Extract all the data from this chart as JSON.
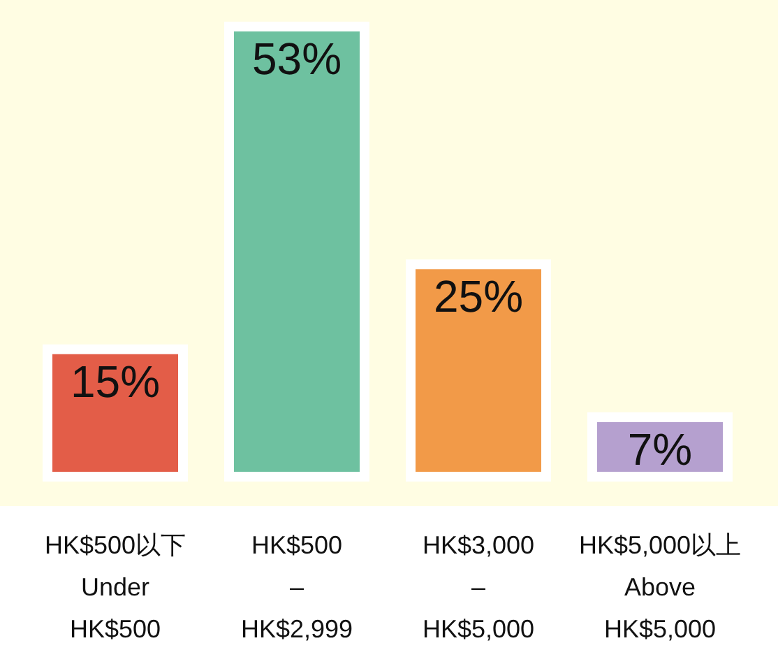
{
  "chart_data": {
    "type": "bar",
    "categories": [
      "HK$500以下\nUnder\nHK$500",
      "HK$500\n–\nHK$2,999",
      "HK$3,000\n–\nHK$5,000",
      "HK$5,000以上\nAbove\nHK$5,000"
    ],
    "values": [
      15,
      53,
      25,
      7
    ],
    "colors": [
      "#e35d48",
      "#6ec1a0",
      "#f29a48",
      "#b5a0cf"
    ],
    "value_labels": [
      "15%",
      "53%",
      "25%",
      "7%"
    ]
  }
}
